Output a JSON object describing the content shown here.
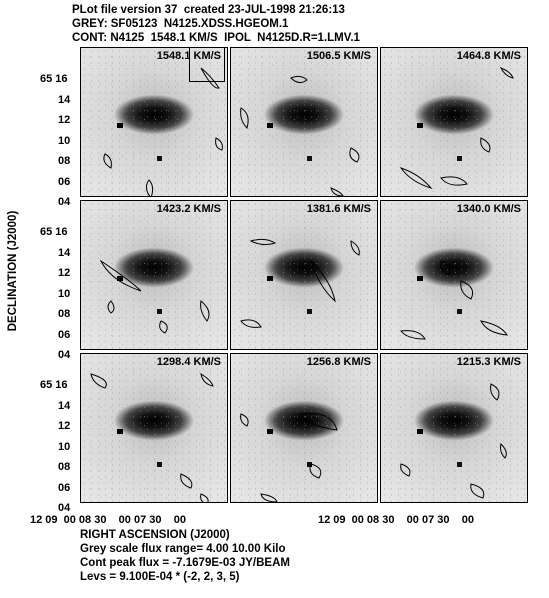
{
  "header": {
    "line1": "PLot file version 37  created 23-JUL-1998 21:26:13",
    "line2": "GREY: SF05123  N4125.XDSS.HGEOM.1",
    "line3": "CONT: N4125  1548.1 KM/S  IPOL  N4125D.R=1.LMV.1"
  },
  "axes": {
    "ylabel": "DECLINATION (J2000)",
    "xlabel": "RIGHT ASCENSION (J2000)",
    "yticks": [
      "65 16",
      "14",
      "12",
      "10",
      "08",
      "06",
      "04"
    ],
    "xticks_left": "12 09  00 08 30    00 07 30    00",
    "xticks_right": "12 09  00 08 30    00 07 30    00"
  },
  "panels": [
    {
      "velocity": "1548.1 KM/S"
    },
    {
      "velocity": "1506.5 KM/S"
    },
    {
      "velocity": "1464.8 KM/S"
    },
    {
      "velocity": "1423.2 KM/S"
    },
    {
      "velocity": "1381.6 KM/S"
    },
    {
      "velocity": "1340.0 KM/S"
    },
    {
      "velocity": "1298.4 KM/S"
    },
    {
      "velocity": "1256.8 KM/S"
    },
    {
      "velocity": "1215.3 KM/S"
    }
  ],
  "footer": {
    "line1": "Grey scale flux range= 4.00 10.00 Kilo",
    "line2": "Cont peak flux = -7.1679E-03 JY/BEAM",
    "line3": "Levs = 9.100E-04 * (-2, 2, 3, 5)"
  }
}
